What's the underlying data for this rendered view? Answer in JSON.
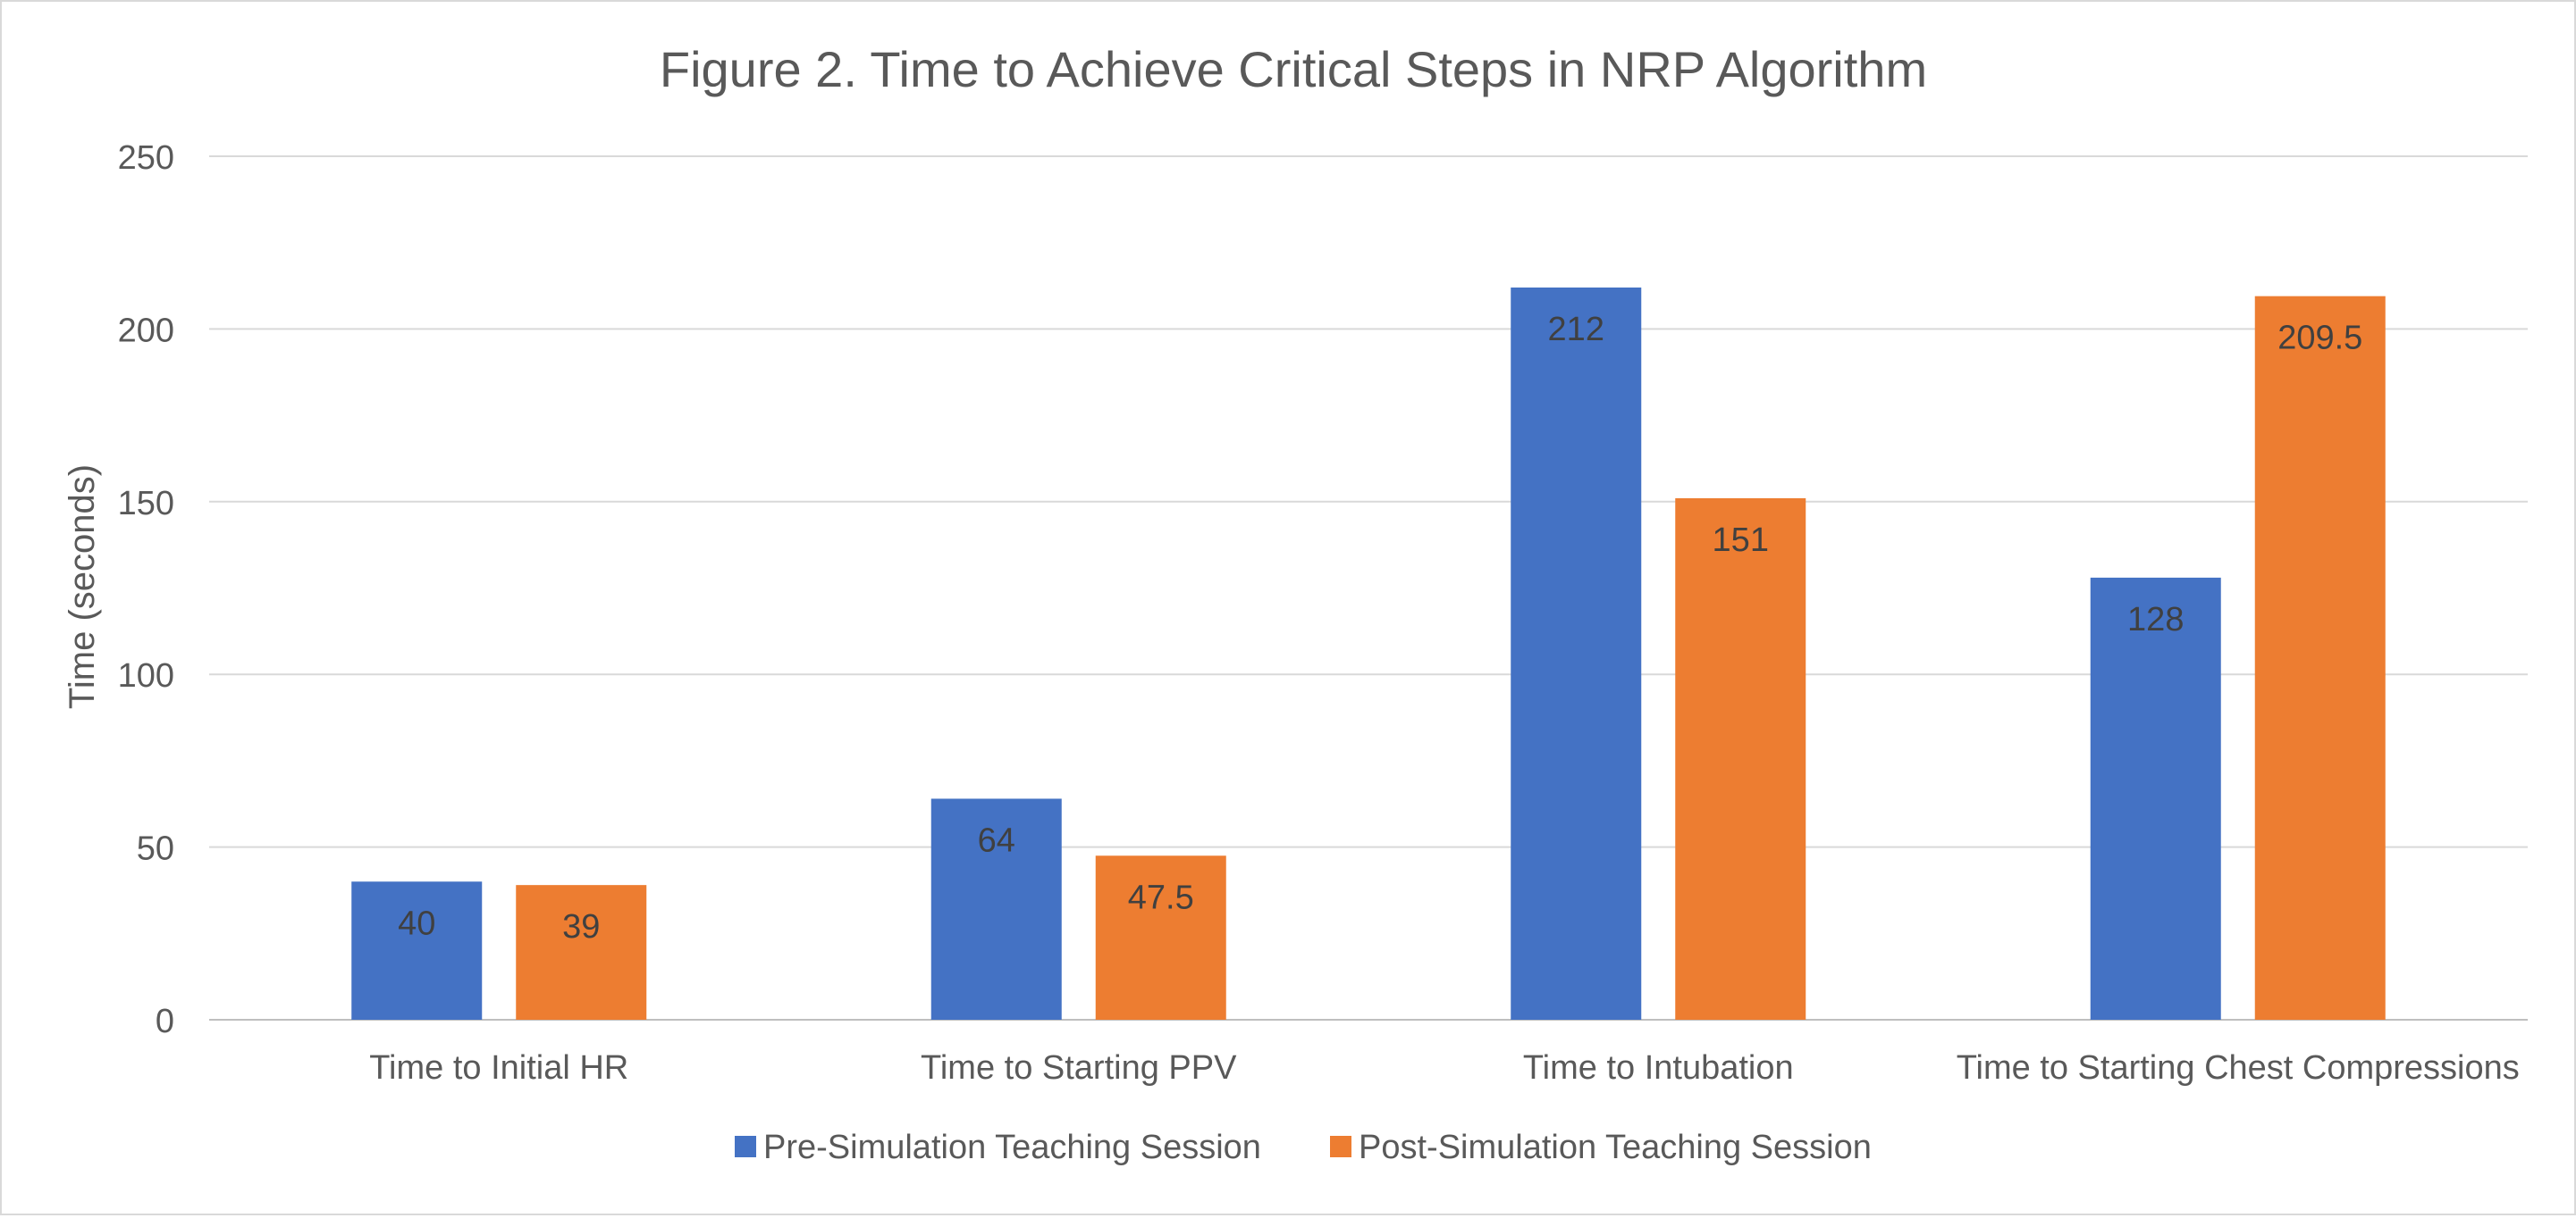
{
  "chart_data": {
    "type": "bar",
    "title": "Figure 2.  Time to Achieve Critical Steps in NRP Algorithm",
    "xlabel": "",
    "ylabel": "Time (seconds)",
    "ylim": [
      0,
      250
    ],
    "yticks": [
      0,
      50,
      100,
      150,
      200,
      250
    ],
    "grid": true,
    "legend_position": "bottom",
    "categories": [
      "Time to Initial HR",
      "Time to Starting PPV",
      "Time to Intubation",
      "Time to Starting Chest Compressions"
    ],
    "series": [
      {
        "name": "Pre-Simulation Teaching Session",
        "color": "#4472C4",
        "values": [
          40,
          64,
          212,
          128
        ]
      },
      {
        "name": "Post-Simulation Teaching Session",
        "color": "#ED7D31",
        "values": [
          39,
          47.5,
          151,
          209.5
        ]
      }
    ],
    "data_labels": true
  }
}
